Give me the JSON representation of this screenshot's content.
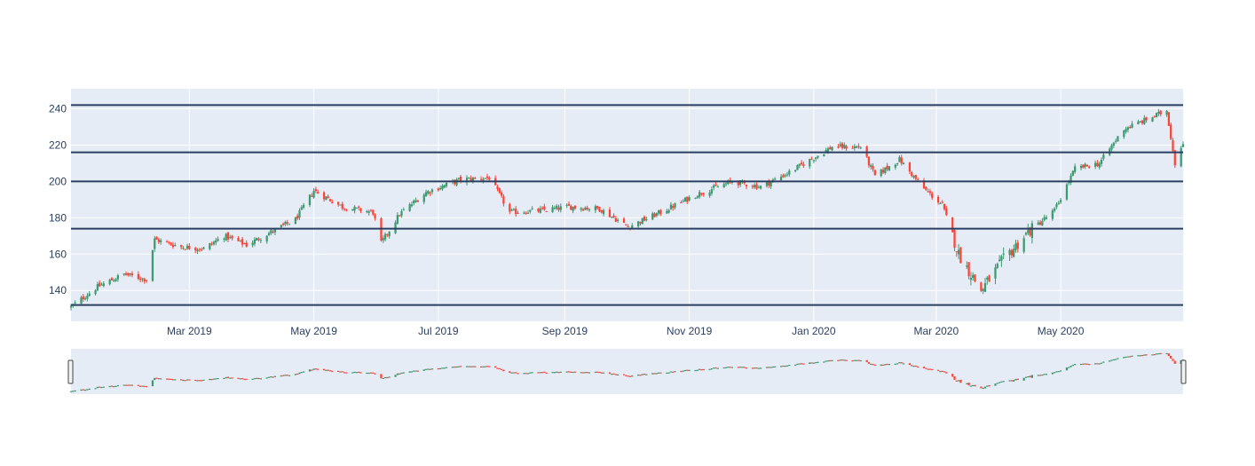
{
  "chart_data": {
    "type": "candlestick",
    "title": "",
    "xlabel": "",
    "ylabel": "",
    "x_range": [
      "2019-01-02",
      "2020-06-30"
    ],
    "ylim": [
      123,
      251
    ],
    "x_tick_labels": [
      "Mar 2019",
      "May 2019",
      "Jul 2019",
      "Sep 2019",
      "Nov 2019",
      "Jan 2020",
      "Mar 2020",
      "May 2020"
    ],
    "x_tick_dates": [
      "2019-03-01",
      "2019-05-01",
      "2019-07-01",
      "2019-09-01",
      "2019-11-01",
      "2020-01-01",
      "2020-03-01",
      "2020-05-01"
    ],
    "y_ticks": [
      140,
      160,
      180,
      200,
      220,
      240
    ],
    "horizontal_levels": [
      132,
      174,
      200,
      216,
      242
    ],
    "series": [
      {
        "increasing_color": "#3d9970",
        "decreasing_color": "#ff4136",
        "price_path": [
          [
            "2019-01-02",
            131
          ],
          [
            "2019-01-15",
            142
          ],
          [
            "2019-01-28",
            149
          ],
          [
            "2019-02-08",
            146
          ],
          [
            "2019-02-12",
            168
          ],
          [
            "2019-02-25",
            164
          ],
          [
            "2019-03-08",
            163
          ],
          [
            "2019-03-18",
            170
          ],
          [
            "2019-03-29",
            165
          ],
          [
            "2019-04-08",
            171
          ],
          [
            "2019-04-22",
            179
          ],
          [
            "2019-05-01",
            195
          ],
          [
            "2019-05-15",
            186
          ],
          [
            "2019-05-30",
            183
          ],
          [
            "2019-06-03",
            166
          ],
          [
            "2019-06-12",
            182
          ],
          [
            "2019-06-25",
            194
          ],
          [
            "2019-07-12",
            201
          ],
          [
            "2019-07-26",
            202
          ],
          [
            "2019-08-05",
            183
          ],
          [
            "2019-08-20",
            184
          ],
          [
            "2019-09-03",
            186
          ],
          [
            "2019-09-18",
            185
          ],
          [
            "2019-10-02",
            175
          ],
          [
            "2019-10-18",
            183
          ],
          [
            "2019-11-05",
            193
          ],
          [
            "2019-11-22",
            200
          ],
          [
            "2019-12-06",
            197
          ],
          [
            "2019-12-20",
            205
          ],
          [
            "2020-01-10",
            219
          ],
          [
            "2020-01-24",
            219
          ],
          [
            "2020-01-31",
            203
          ],
          [
            "2020-02-12",
            212
          ],
          [
            "2020-02-24",
            196
          ],
          [
            "2020-03-04",
            187
          ],
          [
            "2020-03-12",
            160
          ],
          [
            "2020-03-23",
            140
          ],
          [
            "2020-04-03",
            157
          ],
          [
            "2020-04-15",
            172
          ],
          [
            "2020-04-28",
            184
          ],
          [
            "2020-05-08",
            207
          ],
          [
            "2020-05-20",
            210
          ],
          [
            "2020-06-01",
            229
          ],
          [
            "2020-06-10",
            233
          ],
          [
            "2020-06-22",
            239
          ],
          [
            "2020-06-26",
            210
          ],
          [
            "2020-06-30",
            222
          ]
        ]
      }
    ],
    "rangeslider": true
  }
}
